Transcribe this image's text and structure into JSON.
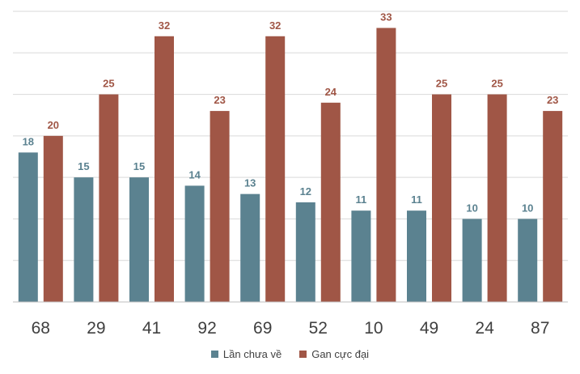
{
  "chart_data": {
    "type": "bar",
    "title": "",
    "xlabel": "",
    "ylabel": "",
    "ylim": [
      0,
      35
    ],
    "grid": true,
    "categories": [
      "68",
      "29",
      "41",
      "92",
      "69",
      "52",
      "10",
      "49",
      "24",
      "87"
    ],
    "series": [
      {
        "name": "Lần chưa về",
        "color": "#5b8290",
        "values": [
          18,
          15,
          15,
          14,
          13,
          12,
          11,
          11,
          10,
          10
        ]
      },
      {
        "name": "Gan cực đại",
        "color": "#a05646",
        "values": [
          20,
          25,
          32,
          23,
          32,
          24,
          33,
          25,
          25,
          23
        ]
      }
    ],
    "legend_position": "bottom"
  }
}
